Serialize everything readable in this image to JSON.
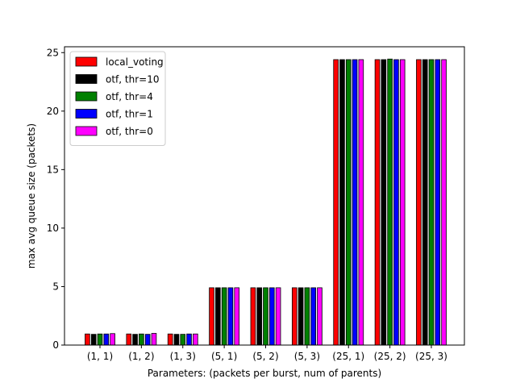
{
  "chart_data": {
    "type": "bar",
    "title": "",
    "xlabel": "Parameters: (packets per burst, num of parents)",
    "ylabel": "max avg queue size (packets)",
    "ylim": [
      0,
      25.5
    ],
    "yticks": [
      0,
      5,
      10,
      15,
      20,
      25
    ],
    "categories": [
      "(1, 1)",
      "(1, 2)",
      "(1, 3)",
      "(5, 1)",
      "(5, 2)",
      "(5, 3)",
      "(25, 1)",
      "(25, 2)",
      "(25, 3)"
    ],
    "legend_position": "top-left",
    "grid": false,
    "series": [
      {
        "name": "local_voting",
        "color": "#ff0000",
        "values": [
          0.95,
          0.95,
          0.95,
          4.9,
          4.9,
          4.9,
          24.4,
          24.4,
          24.4
        ]
      },
      {
        "name": "otf, thr=10",
        "color": "#000000",
        "values": [
          0.92,
          0.92,
          0.92,
          4.9,
          4.9,
          4.9,
          24.4,
          24.4,
          24.4
        ]
      },
      {
        "name": "otf, thr=4",
        "color": "#008000",
        "values": [
          0.95,
          0.95,
          0.92,
          4.9,
          4.9,
          4.9,
          24.4,
          24.45,
          24.4
        ]
      },
      {
        "name": "otf, thr=1",
        "color": "#0000ff",
        "values": [
          0.95,
          0.92,
          0.95,
          4.9,
          4.9,
          4.9,
          24.4,
          24.4,
          24.4
        ]
      },
      {
        "name": "otf, thr=0",
        "color": "#ff00ff",
        "values": [
          0.98,
          1.0,
          0.95,
          4.9,
          4.9,
          4.9,
          24.4,
          24.4,
          24.4
        ]
      }
    ]
  }
}
